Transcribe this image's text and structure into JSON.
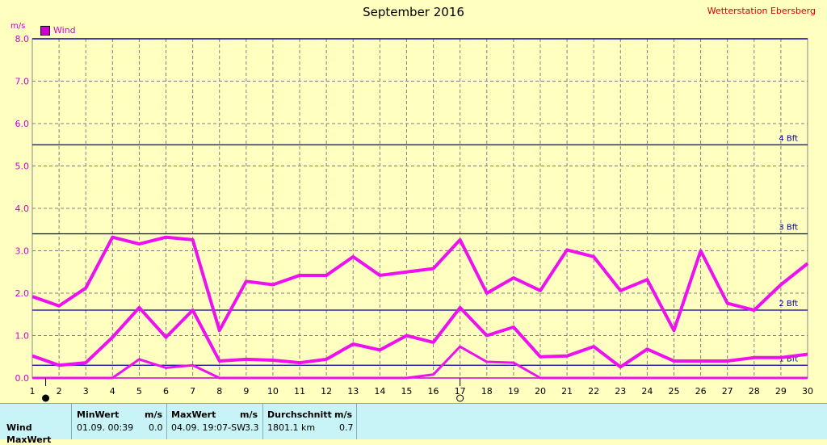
{
  "title": "September 2016",
  "station": "Wetterstation Ebersberg",
  "unit_label": "m/s",
  "legend": {
    "label": "Wind",
    "color": "#d000d0"
  },
  "stats": {
    "row_label": "Wind",
    "row2_label": "MaxWert",
    "min": {
      "header": "MinWert",
      "unit": "m/s",
      "time": "01.09.  00:39",
      "value": "0.0"
    },
    "max": {
      "header": "MaxWert",
      "unit": "m/s",
      "time": "04.09.  19:07-SW",
      "value": "3.3"
    },
    "avg": {
      "header": "Durchschnitt",
      "unit": "m/s",
      "time": "1801.1 km",
      "value": "0.7"
    }
  },
  "chart_data": {
    "type": "line",
    "title": "September 2016",
    "ylabel": "m/s",
    "ylim": [
      0,
      8
    ],
    "xlim": [
      1,
      30
    ],
    "y_ticks": [
      "0.0",
      "1.0",
      "2.0",
      "3.0",
      "4.0",
      "5.0",
      "6.0",
      "7.0",
      "8.0"
    ],
    "x": [
      1,
      2,
      3,
      4,
      5,
      6,
      7,
      8,
      9,
      10,
      11,
      12,
      13,
      14,
      15,
      16,
      17,
      18,
      19,
      20,
      21,
      22,
      23,
      24,
      25,
      26,
      27,
      28,
      29,
      30
    ],
    "series": [
      {
        "name": "Wind",
        "color": "#ee10ee",
        "values": [
          1.92,
          1.7,
          2.12,
          3.32,
          3.16,
          3.32,
          3.26,
          1.12,
          2.28,
          2.2,
          2.42,
          2.42,
          2.86,
          2.42,
          2.5,
          2.58,
          3.26,
          2.0,
          2.36,
          2.06,
          3.02,
          2.86,
          2.06,
          2.32,
          1.12,
          3.0,
          1.76,
          1.6,
          2.2,
          2.7
        ]
      },
      {
        "values": [
          0.52,
          0.3,
          0.36,
          0.96,
          1.66,
          0.96,
          1.6,
          0.4,
          0.44,
          0.42,
          0.36,
          0.44,
          0.8,
          0.66,
          1.0,
          0.84,
          1.66,
          1.0,
          1.2,
          0.5,
          0.52,
          0.74,
          0.26,
          0.68,
          0.4,
          0.4,
          0.4,
          0.48,
          0.48,
          0.56
        ]
      },
      {
        "values": [
          0,
          0,
          0,
          0,
          0.44,
          0.24,
          0.3,
          0,
          0,
          0,
          0,
          0,
          0,
          0,
          0,
          0.08,
          0.74,
          0.38,
          0.36,
          0,
          0,
          0,
          0,
          0,
          0,
          0,
          0,
          0,
          0,
          0
        ]
      }
    ],
    "reference_lines": [
      {
        "value": 0.3,
        "label": "1 Bft"
      },
      {
        "value": 1.6,
        "label": "2 Bft"
      },
      {
        "value": 3.4,
        "label": "3 Bft"
      },
      {
        "value": 5.5,
        "label": "4 Bft"
      }
    ],
    "grid": true,
    "legend_position": "top-left",
    "markers": [
      {
        "x": 1.5,
        "symbol": "full-moon"
      },
      {
        "x": 17,
        "symbol": "new-moon"
      }
    ]
  }
}
